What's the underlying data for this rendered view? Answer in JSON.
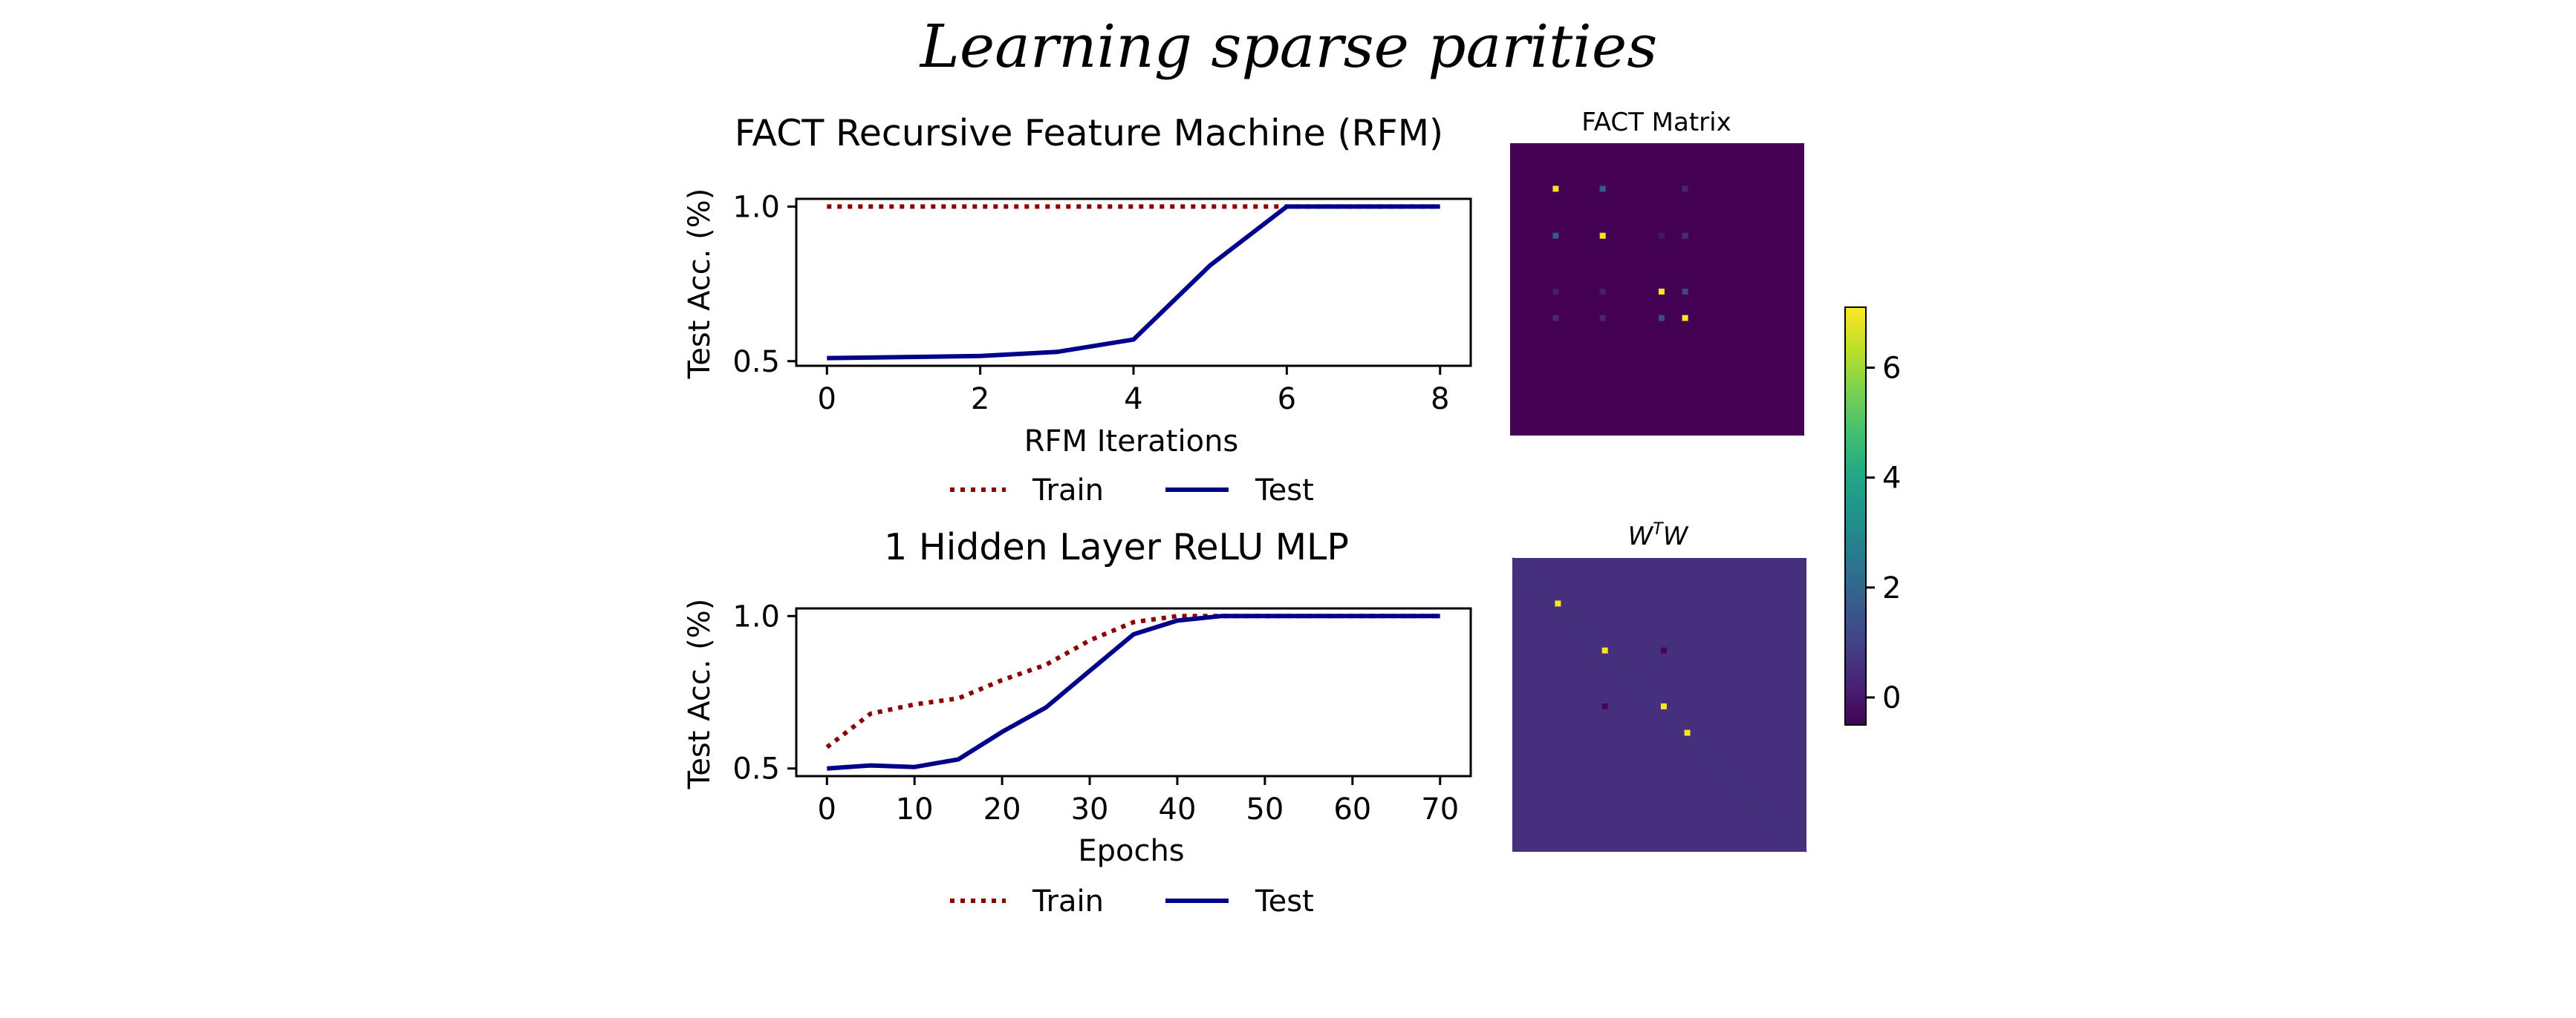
{
  "title": "Learning sparse parities",
  "colors": {
    "train": "#8b0000",
    "test": "#00008b",
    "viridis_low": "#440154",
    "viridis_high": "#fde725"
  },
  "chart_data": [
    {
      "type": "line",
      "title": "FACT Recursive Feature Machine (RFM)",
      "xlabel": "RFM Iterations",
      "ylabel": "Test Acc. (%)",
      "xlim": [
        -0.4,
        8.4
      ],
      "ylim": [
        0.485,
        1.025
      ],
      "xticks": [
        0,
        2,
        4,
        6,
        8
      ],
      "xtick_labels": [
        "0",
        "2",
        "4",
        "6",
        "8"
      ],
      "yticks": [
        0.5,
        1.0
      ],
      "ytick_labels": [
        "0.5",
        "1.0"
      ],
      "legend": "bottom-center",
      "series": [
        {
          "name": "Train",
          "style": "dotted",
          "color": "#8b0000",
          "x": [
            0,
            1,
            2,
            3,
            4,
            5,
            6,
            7,
            8
          ],
          "y": [
            1.0,
            1.0,
            1.0,
            1.0,
            1.0,
            1.0,
            1.0,
            1.0,
            1.0
          ]
        },
        {
          "name": "Test",
          "style": "solid",
          "color": "#00008b",
          "x": [
            0,
            1,
            2,
            3,
            4,
            5,
            6,
            7,
            8
          ],
          "y": [
            0.51,
            0.513,
            0.517,
            0.53,
            0.57,
            0.81,
            1.0,
            1.0,
            1.0
          ]
        }
      ]
    },
    {
      "type": "line",
      "title": "1 Hidden Layer ReLU MLP",
      "xlabel": "Epochs",
      "ylabel": "Test Acc. (%)",
      "xlim": [
        -3.5,
        73.5
      ],
      "ylim": [
        0.475,
        1.025
      ],
      "xticks": [
        0,
        10,
        20,
        30,
        40,
        50,
        60,
        70
      ],
      "xtick_labels": [
        "0",
        "10",
        "20",
        "30",
        "40",
        "50",
        "60",
        "70"
      ],
      "yticks": [
        0.5,
        1.0
      ],
      "ytick_labels": [
        "0.5",
        "1.0"
      ],
      "legend": "bottom-center",
      "series": [
        {
          "name": "Train",
          "style": "dotted",
          "color": "#8b0000",
          "x": [
            0,
            5,
            10,
            15,
            20,
            25,
            30,
            35,
            40,
            45,
            50,
            55,
            60,
            65,
            70
          ],
          "y": [
            0.57,
            0.68,
            0.71,
            0.73,
            0.79,
            0.84,
            0.92,
            0.98,
            1.0,
            1.0,
            1.0,
            1.0,
            1.0,
            1.0,
            1.0
          ]
        },
        {
          "name": "Test",
          "style": "solid",
          "color": "#00008b",
          "x": [
            0,
            5,
            10,
            15,
            20,
            25,
            30,
            35,
            40,
            45,
            50,
            55,
            60,
            65,
            70
          ],
          "y": [
            0.5,
            0.51,
            0.505,
            0.53,
            0.62,
            0.7,
            0.82,
            0.94,
            0.985,
            1.0,
            1.0,
            1.0,
            1.0,
            1.0,
            1.0
          ]
        }
      ]
    },
    {
      "type": "heatmap",
      "title": "FACT Matrix",
      "size": 100,
      "background": "#440154",
      "cells": [
        {
          "row": 15,
          "col": 15,
          "value": 7.0
        },
        {
          "row": 15,
          "col": 31,
          "value": 1.7
        },
        {
          "row": 15,
          "col": 59,
          "value": 0.25
        },
        {
          "row": 31,
          "col": 15,
          "value": 1.7
        },
        {
          "row": 31,
          "col": 31,
          "value": 7.0
        },
        {
          "row": 31,
          "col": 59,
          "value": 0.5
        },
        {
          "row": 31,
          "col": 51,
          "value": -0.1
        },
        {
          "row": 50,
          "col": 51,
          "value": 7.0
        },
        {
          "row": 50,
          "col": 59,
          "value": 1.2
        },
        {
          "row": 59,
          "col": 51,
          "value": 1.2
        },
        {
          "row": 59,
          "col": 59,
          "value": 7.0
        },
        {
          "row": 59,
          "col": 15,
          "value": 0.35
        },
        {
          "row": 59,
          "col": 31,
          "value": 0.3
        },
        {
          "row": 50,
          "col": 15,
          "value": 0.1
        },
        {
          "row": 50,
          "col": 31,
          "value": 0.1
        }
      ]
    },
    {
      "type": "heatmap",
      "title": "W^TW",
      "title_base": "W",
      "title_sup": "T",
      "title_tail": "W",
      "size": 100,
      "background": "#46307e",
      "diagonal_value": 0.7,
      "cells": [
        {
          "row": 15,
          "col": 15,
          "value": 7.0
        },
        {
          "row": 31,
          "col": 31,
          "value": 7.0
        },
        {
          "row": 50,
          "col": 51,
          "value": 7.0
        },
        {
          "row": 59,
          "col": 59,
          "value": 7.0
        },
        {
          "row": 31,
          "col": 51,
          "value": -0.4
        },
        {
          "row": 50,
          "col": 31,
          "value": -0.4
        }
      ]
    }
  ],
  "colorbar": {
    "vmin": -0.5,
    "vmax": 7.1,
    "ticks": [
      0,
      2,
      4,
      6
    ],
    "tick_labels": [
      "0",
      "2",
      "4",
      "6"
    ]
  }
}
